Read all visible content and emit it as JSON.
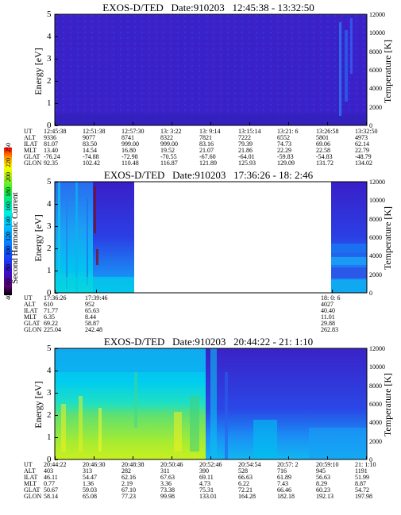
{
  "colorbar": {
    "label": "Second Harmonic Current",
    "ticks": [
      "250",
      "220",
      "200",
      "180",
      "160",
      "140",
      "120",
      "100",
      "80",
      "60",
      "40"
    ],
    "colors": [
      "#000000",
      "#5a0070",
      "#3a10d0",
      "#1050ff",
      "#0a8fff",
      "#00c8ff",
      "#00f0e0",
      "#00e890",
      "#30f030",
      "#b0f020",
      "#ffff00",
      "#ffa000",
      "#ff0000"
    ]
  },
  "panels": [
    {
      "title": "EXOS-D/TED   Date:910203   12:45:38 - 13:32:50",
      "ylabel": "Energy [eV]",
      "y2label": "Temperature [K]",
      "yticks": [
        "5",
        "4",
        "3",
        "2",
        "1",
        "0"
      ],
      "y2ticks": [
        "12000",
        "10000",
        "8000",
        "6000",
        "4000",
        "2000",
        "0"
      ],
      "orbit_labels": [
        "UT",
        "ALT",
        "ILAT",
        "MLT",
        "GLAT",
        "GLON"
      ],
      "columns": [
        [
          "12:45:38",
          "9336",
          "81.07",
          "13.40",
          "-76.24",
          "92.35"
        ],
        [
          "12:51:38",
          "9077",
          "83.50",
          "14.54",
          "-74.88",
          "102.42"
        ],
        [
          "12:57:30",
          "8741",
          "999.00",
          "16.80",
          "-72.98",
          "110.48"
        ],
        [
          "13: 3:22",
          "8322",
          "999.00",
          "19.52",
          "-70.55",
          "116.87"
        ],
        [
          "13: 9:14",
          "7821",
          "83.16",
          "21.07",
          "-67.60",
          "121.89"
        ],
        [
          "13:15:14",
          "7222",
          "79.39",
          "21.86",
          "-64.01",
          "125.93"
        ],
        [
          "13:21: 6",
          "6552",
          "74.73",
          "22.29",
          "-59.83",
          "129.09"
        ],
        [
          "13:26:58",
          "5801",
          "69.06",
          "22.58",
          "-54.83",
          "131.72"
        ],
        [
          "13:32:50",
          "4973",
          "62.14",
          "22.79",
          "-48.79",
          "134.02"
        ]
      ]
    },
    {
      "title": "EXOS-D/TED   Date:910203   17:36:26 - 18: 2:46",
      "ylabel": "Energy [eV]",
      "y2label": "Temperature [K]",
      "yticks": [
        "5",
        "4",
        "3",
        "2",
        "1",
        "0"
      ],
      "y2ticks": [
        "12000",
        "10000",
        "8000",
        "6000",
        "4000",
        "2000",
        "0"
      ],
      "orbit_labels": [
        "UT",
        "ALT",
        "ILAT",
        "MLT",
        "GLAT",
        "GLON"
      ],
      "columns": [
        [
          "17:36:26",
          "610",
          "71.77",
          "6.35",
          "69.22",
          "225.04"
        ],
        [
          "17:39:46",
          "952",
          "65.63",
          "8.44",
          "58.87",
          "242.48"
        ],
        [
          "18: 0: 6",
          "4027",
          "40.40",
          "11.01",
          "29.88",
          "262.83"
        ]
      ]
    },
    {
      "title": "EXOS-D/TED   Date:910203   20:44:22 - 21: 1:10",
      "ylabel": "Energy [eV]",
      "y2label": "Temperature [K]",
      "yticks": [
        "5",
        "4",
        "3",
        "2",
        "1",
        "0"
      ],
      "y2ticks": [
        "12000",
        "10000",
        "8000",
        "6000",
        "4000",
        "2000",
        "0"
      ],
      "orbit_labels": [
        "UT",
        "ALT",
        "ILAT",
        "MLT",
        "GLAT",
        "GLON"
      ],
      "columns": [
        [
          "20:44:22",
          "403",
          "46.11",
          "0.77",
          "50.67",
          "58.14"
        ],
        [
          "20:46:30",
          "313",
          "54.47",
          "1.36",
          "59.03",
          "65.08"
        ],
        [
          "20:48:38",
          "282",
          "62.16",
          "2.19",
          "67.10",
          "77.23"
        ],
        [
          "20:50:46",
          "311",
          "67.63",
          "3.36",
          "73.38",
          "99.98"
        ],
        [
          "20:52:46",
          "390",
          "69.11",
          "4.73",
          "75.31",
          "133.01"
        ],
        [
          "20:54:54",
          "528",
          "66.63",
          "6.22",
          "72.21",
          "164.28"
        ],
        [
          "20:57: 2",
          "716",
          "61.89",
          "7.43",
          "66.46",
          "182.18"
        ],
        [
          "20:59:10",
          "945",
          "56.63",
          "8.29",
          "60.23",
          "192.13"
        ],
        [
          "21: 1:10",
          "1191",
          "51.99",
          "8.87",
          "54.72",
          "197.98"
        ]
      ]
    }
  ],
  "chart_data": [
    {
      "type": "heatmap",
      "title": "EXOS-D/TED   Date:910203   12:45:38 - 13:32:50",
      "xlabel": "UT",
      "ylabel": "Energy [eV]",
      "y2label": "Temperature [K]",
      "ylim": [
        0,
        5
      ],
      "y2lim": [
        0,
        12000
      ],
      "colorbar_label": "Second Harmonic Current",
      "colorbar_range": [
        40,
        250
      ],
      "ut": [
        "12:45:38",
        "12:51:38",
        "12:57:30",
        "13: 3:22",
        "13: 9:14",
        "13:15:14",
        "13:21: 6",
        "13:26:58",
        "13:32:50"
      ],
      "background_level": 70,
      "data_gaps": []
    },
    {
      "type": "heatmap",
      "title": "EXOS-D/TED   Date:910203   17:36:26 - 18: 2:46",
      "xlabel": "UT",
      "ylabel": "Energy [eV]",
      "y2label": "Temperature [K]",
      "ylim": [
        0,
        5
      ],
      "y2lim": [
        0,
        12000
      ],
      "colorbar_label": "Second Harmonic Current",
      "colorbar_range": [
        40,
        250
      ],
      "ut": [
        "17:36:26",
        "17:39:46",
        "18: 0: 6"
      ],
      "data_gaps": [
        [
          "17:41:30",
          "18: 0: 6"
        ]
      ]
    },
    {
      "type": "heatmap",
      "title": "EXOS-D/TED   Date:910203   20:44:22 - 21: 1:10",
      "xlabel": "UT",
      "ylabel": "Energy [eV]",
      "y2label": "Temperature [K]",
      "ylim": [
        0,
        5
      ],
      "y2lim": [
        0,
        12000
      ],
      "colorbar_label": "Second Harmonic Current",
      "colorbar_range": [
        40,
        250
      ],
      "ut": [
        "20:44:22",
        "20:46:30",
        "20:48:38",
        "20:50:46",
        "20:52:46",
        "20:54:54",
        "20:57: 2",
        "20:59:10",
        "21: 1:10"
      ],
      "data_gaps": []
    }
  ]
}
